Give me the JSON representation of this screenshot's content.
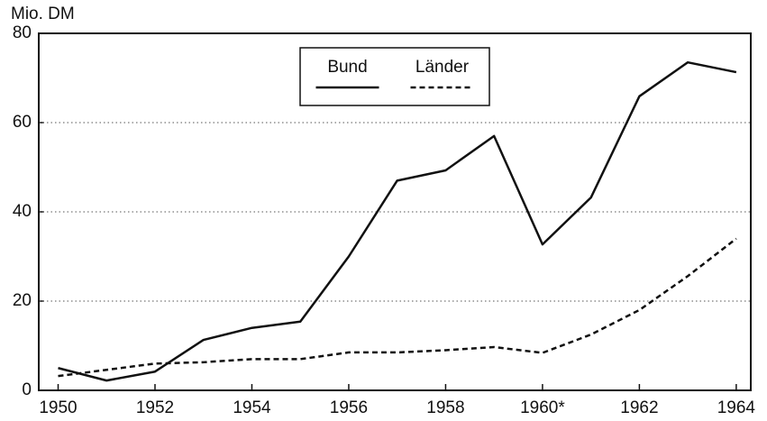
{
  "chart_data": {
    "type": "line",
    "y_label": "Mio. DM",
    "x": [
      1950,
      1951,
      1952,
      1953,
      1954,
      1955,
      1956,
      1957,
      1958,
      1959,
      1960,
      1961,
      1962,
      1963,
      1964
    ],
    "series": [
      {
        "name": "Bund",
        "color": "#111111",
        "style": "solid",
        "values": [
          5.0,
          2.2,
          4.2,
          11.3,
          14,
          15.4,
          30,
          47,
          49.3,
          57,
          32.7,
          43.2,
          65.9,
          73.5,
          71.3
        ]
      },
      {
        "name": "Länder",
        "color": "#111111",
        "style": "dashed",
        "values": [
          3.2,
          4.6,
          6,
          6.3,
          7,
          7,
          8.5,
          8.5,
          9,
          9.7,
          8.4,
          12.5,
          18,
          25.6,
          34
        ]
      }
    ],
    "xlim": [
      1949.6,
      1964.3
    ],
    "ylim": [
      0,
      80
    ],
    "xticks": [
      1950,
      1952,
      1954,
      1956,
      1958,
      {
        "value": 1960,
        "label": "1960*"
      },
      1962,
      1964
    ],
    "yticks": [
      0,
      20,
      40,
      60,
      80
    ],
    "grid": true,
    "legend": "upper center"
  }
}
